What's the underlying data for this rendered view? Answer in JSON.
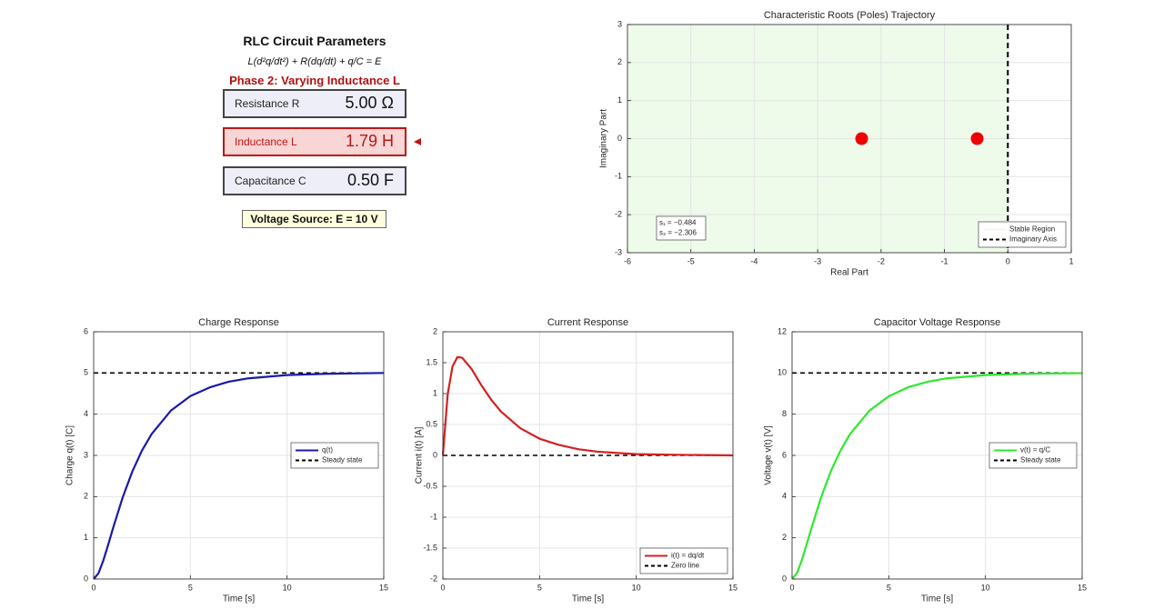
{
  "panel": {
    "title": "RLC Circuit Parameters",
    "equation": "L(d²q/dt²) + R(dq/dt) + q/C = E",
    "phase": "Phase 2: Varying Inductance L",
    "params": [
      {
        "label": "Resistance R",
        "value": "5.00 Ω"
      },
      {
        "label": "Inductance L",
        "value": "1.79 H"
      },
      {
        "label": "Capacitance C",
        "value": "0.50 F"
      }
    ],
    "source": "Voltage Source: E = 10 V"
  },
  "chart_data": [
    {
      "type": "scatter",
      "title": "Characteristic Roots (Poles) Trajectory",
      "xlabel": "Real Part",
      "ylabel": "Imaginary Part",
      "xlim": [
        -6,
        1
      ],
      "xticks": [
        -6,
        -5,
        -4,
        -3,
        -2,
        -1,
        0,
        1
      ],
      "ylim": [
        -3,
        3
      ],
      "yticks": [
        -3,
        -2,
        -1,
        0,
        1,
        2,
        3
      ],
      "grid": true,
      "points": {
        "x": [
          -2.306,
          -0.484
        ],
        "y": [
          0,
          0
        ],
        "color": "#ee0000"
      },
      "region": {
        "name": "Stable Region",
        "xlim": [
          -6,
          0
        ],
        "color": "#eefbea"
      },
      "vline": {
        "name": "Imaginary Axis",
        "x": 0,
        "color": "#000000"
      },
      "annotation": [
        "s₁ = −0.484",
        "s₂ = −2.306"
      ],
      "legend": "southeast"
    },
    {
      "type": "line",
      "title": "Charge Response",
      "xlabel": "Time [s]",
      "ylabel": "Charge q(t) [C]",
      "xlim": [
        0,
        15
      ],
      "xticks": [
        0,
        5,
        10,
        15
      ],
      "ylim": [
        0,
        6
      ],
      "yticks": [
        0,
        1,
        2,
        3,
        4,
        5,
        6
      ],
      "grid": true,
      "x": [
        0,
        0.25,
        0.5,
        0.75,
        1,
        1.5,
        2,
        2.5,
        3,
        4,
        5,
        6,
        7,
        8,
        10,
        12,
        15
      ],
      "series": [
        {
          "name": "q(t)",
          "color": "#1a1aa8",
          "values": [
            0,
            0.14,
            0.45,
            0.83,
            1.23,
            1.98,
            2.61,
            3.12,
            3.52,
            4.09,
            4.44,
            4.65,
            4.79,
            4.87,
            4.95,
            4.98,
            5.0
          ]
        }
      ],
      "refline": {
        "name": "Steady state",
        "value": 5,
        "color": "#000000"
      },
      "legend": "east"
    },
    {
      "type": "line",
      "title": "Current Response",
      "xlabel": "Time [s]",
      "ylabel": "Current i(t) [A]",
      "xlim": [
        0,
        15
      ],
      "xticks": [
        0,
        5,
        10,
        15
      ],
      "ylim": [
        -2,
        2
      ],
      "yticks": [
        -2,
        -1.5,
        -1,
        -0.5,
        0,
        0.5,
        1,
        1.5,
        2
      ],
      "grid": true,
      "x": [
        0,
        0.25,
        0.5,
        0.75,
        1,
        1.5,
        2,
        2.5,
        3,
        4,
        5,
        6,
        7,
        8,
        10,
        12,
        15
      ],
      "series": [
        {
          "name": "i(t) = dq/dt",
          "color": "#d42020",
          "values": [
            0,
            0.99,
            1.44,
            1.59,
            1.58,
            1.39,
            1.13,
            0.9,
            0.71,
            0.44,
            0.27,
            0.17,
            0.1,
            0.06,
            0.02,
            0.01,
            0
          ]
        }
      ],
      "refline": {
        "name": "Zero line",
        "value": 0,
        "color": "#000000"
      },
      "legend": "southeast"
    },
    {
      "type": "line",
      "title": "Capacitor Voltage Response",
      "xlabel": "Time [s]",
      "ylabel": "Voltage v(t) [V]",
      "xlim": [
        0,
        15
      ],
      "xticks": [
        0,
        5,
        10,
        15
      ],
      "ylim": [
        0,
        12
      ],
      "yticks": [
        0,
        2,
        4,
        6,
        8,
        10,
        12
      ],
      "grid": true,
      "x": [
        0,
        0.25,
        0.5,
        0.75,
        1,
        1.5,
        2,
        2.5,
        3,
        4,
        5,
        6,
        7,
        8,
        10,
        12,
        15
      ],
      "series": [
        {
          "name": "v(t) = q/C",
          "color": "#2ee82e",
          "values": [
            0,
            0.28,
            0.9,
            1.67,
            2.46,
            3.96,
            5.22,
            6.23,
            7.04,
            8.17,
            8.87,
            9.31,
            9.57,
            9.74,
            9.9,
            9.96,
            9.99
          ]
        }
      ],
      "refline": {
        "name": "Steady state",
        "value": 10,
        "color": "#000000"
      },
      "legend": "east"
    }
  ]
}
